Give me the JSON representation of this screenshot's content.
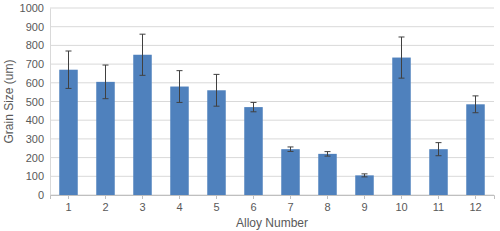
{
  "chart_data": {
    "type": "bar",
    "x_label": "Alloy Number",
    "y_label": "Grain Size (um)",
    "categories": [
      "1",
      "2",
      "3",
      "4",
      "5",
      "6",
      "7",
      "8",
      "9",
      "10",
      "11",
      "12"
    ],
    "values": [
      670,
      605,
      750,
      580,
      560,
      470,
      245,
      220,
      105,
      735,
      245,
      485
    ],
    "errors": [
      100,
      90,
      110,
      85,
      85,
      25,
      12,
      12,
      8,
      110,
      35,
      45
    ],
    "color": "#4f81bd",
    "ylim": [
      0,
      1000
    ],
    "yticks": [
      0,
      100,
      200,
      300,
      400,
      500,
      600,
      700,
      800,
      900,
      1000
    ],
    "grid": true
  }
}
